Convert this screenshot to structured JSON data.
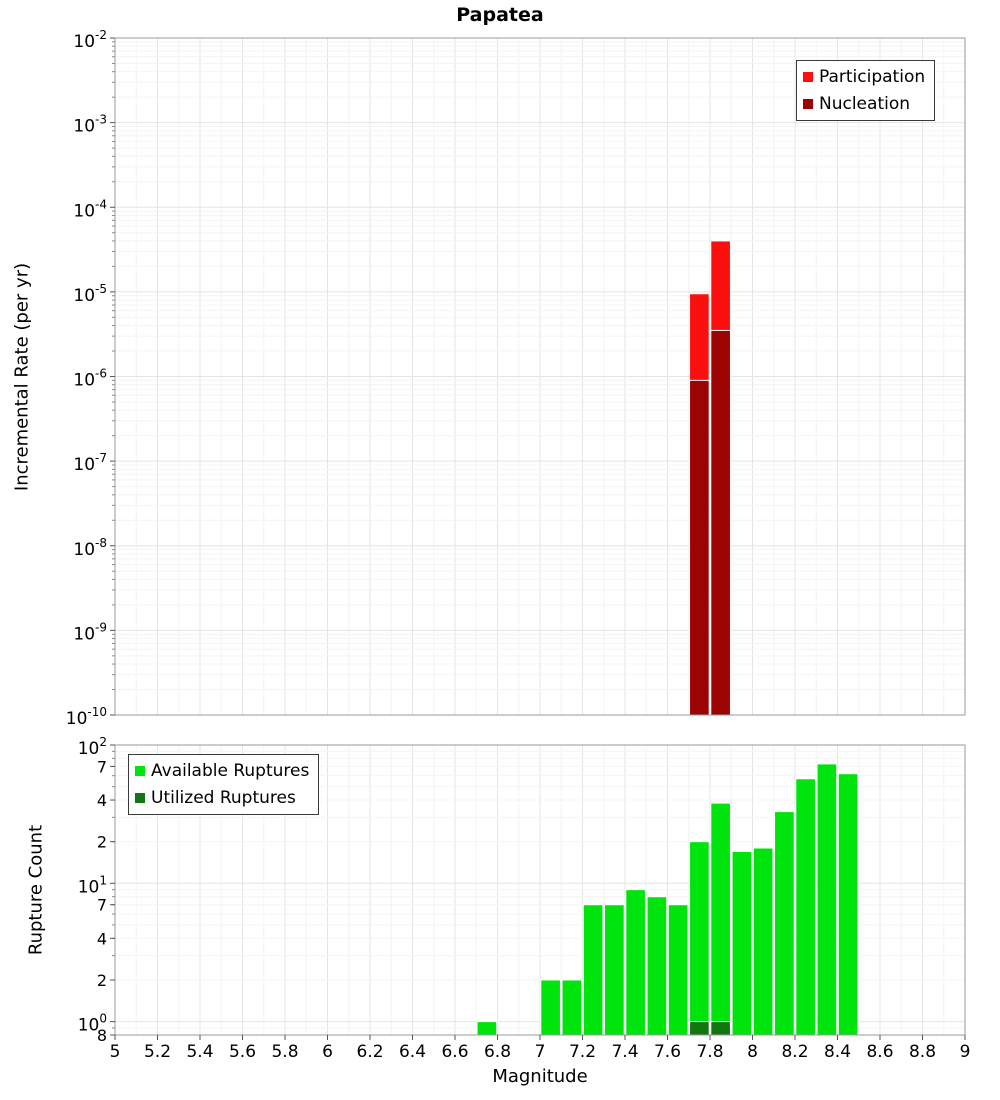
{
  "title": "Papatea",
  "chart_data": [
    {
      "type": "bar",
      "panel": "top",
      "title": "Papatea",
      "xlabel": "",
      "ylabel": "Incremental Rate (per yr)",
      "yscale": "log",
      "xscale": "linear",
      "xlim": [
        5,
        9
      ],
      "ylim": [
        1e-10,
        0.01
      ],
      "bar_width": 0.1,
      "grid": true,
      "legend_position": "top-right",
      "series": [
        {
          "name": "Participation",
          "color": "#fb0f0f",
          "points": [
            [
              7.75,
              9.5e-06
            ],
            [
              7.85,
              4e-05
            ]
          ]
        },
        {
          "name": "Nucleation",
          "color": "#9c0303",
          "points": [
            [
              7.75,
              9e-07
            ],
            [
              7.85,
              3.5e-06
            ]
          ]
        }
      ],
      "y_ticks": [
        {
          "v": 0.01,
          "base": "10",
          "sup": "-2"
        },
        {
          "v": 0.001,
          "base": "10",
          "sup": "-3"
        },
        {
          "v": 0.0001,
          "base": "10",
          "sup": "-4"
        },
        {
          "v": 1e-05,
          "base": "10",
          "sup": "-5"
        },
        {
          "v": 1e-06,
          "base": "10",
          "sup": "-6"
        },
        {
          "v": 1e-07,
          "base": "10",
          "sup": "-7"
        },
        {
          "v": 1e-08,
          "base": "10",
          "sup": "-8"
        },
        {
          "v": 1e-09,
          "base": "10",
          "sup": "-9"
        },
        {
          "v": 1e-10,
          "base": "10",
          "sup": "-10"
        }
      ]
    },
    {
      "type": "bar",
      "panel": "bottom",
      "title": "",
      "xlabel": "Magnitude",
      "ylabel": "Rupture Count",
      "yscale": "log",
      "xscale": "linear",
      "xlim": [
        5,
        9
      ],
      "ylim": [
        0.8,
        100
      ],
      "bar_width": 0.1,
      "grid": true,
      "legend_position": "top-left",
      "series": [
        {
          "name": "Available Ruptures",
          "color": "#00e40d",
          "points": [
            [
              6.75,
              1
            ],
            [
              7.05,
              2
            ],
            [
              7.15,
              2
            ],
            [
              7.25,
              7
            ],
            [
              7.35,
              7
            ],
            [
              7.45,
              9
            ],
            [
              7.55,
              8
            ],
            [
              7.65,
              7
            ],
            [
              7.75,
              20
            ],
            [
              7.85,
              38
            ],
            [
              7.95,
              17
            ],
            [
              8.05,
              18
            ],
            [
              8.15,
              33
            ],
            [
              8.25,
              57
            ],
            [
              8.35,
              73
            ],
            [
              8.45,
              62
            ]
          ]
        },
        {
          "name": "Utilized Ruptures",
          "color": "#117711",
          "points": [
            [
              7.75,
              1
            ],
            [
              7.85,
              1
            ]
          ]
        }
      ],
      "y_ticks": [
        {
          "v": 100,
          "base": "10",
          "sup": "2"
        },
        {
          "v": 70,
          "base": "7"
        },
        {
          "v": 40,
          "base": "4"
        },
        {
          "v": 20,
          "base": "2"
        },
        {
          "v": 10,
          "base": "10",
          "sup": "1"
        },
        {
          "v": 7,
          "base": "7"
        },
        {
          "v": 4,
          "base": "4"
        },
        {
          "v": 2,
          "base": "2"
        },
        {
          "v": 1,
          "base": "10",
          "sup": "0"
        },
        {
          "v": 0.8,
          "base": "8"
        }
      ],
      "x_ticks": [
        {
          "v": 5,
          "label": "5"
        },
        {
          "v": 5.2,
          "label": "5.2"
        },
        {
          "v": 5.4,
          "label": "5.4"
        },
        {
          "v": 5.6,
          "label": "5.6"
        },
        {
          "v": 5.8,
          "label": "5.8"
        },
        {
          "v": 6,
          "label": "6"
        },
        {
          "v": 6.2,
          "label": "6.2"
        },
        {
          "v": 6.4,
          "label": "6.4"
        },
        {
          "v": 6.6,
          "label": "6.6"
        },
        {
          "v": 6.8,
          "label": "6.8"
        },
        {
          "v": 7,
          "label": "7"
        },
        {
          "v": 7.2,
          "label": "7.2"
        },
        {
          "v": 7.4,
          "label": "7.4"
        },
        {
          "v": 7.6,
          "label": "7.6"
        },
        {
          "v": 7.8,
          "label": "7.8"
        },
        {
          "v": 8,
          "label": "8"
        },
        {
          "v": 8.2,
          "label": "8.2"
        },
        {
          "v": 8.4,
          "label": "8.4"
        },
        {
          "v": 8.6,
          "label": "8.6"
        },
        {
          "v": 8.8,
          "label": "8.8"
        },
        {
          "v": 9,
          "label": "9"
        }
      ]
    }
  ]
}
